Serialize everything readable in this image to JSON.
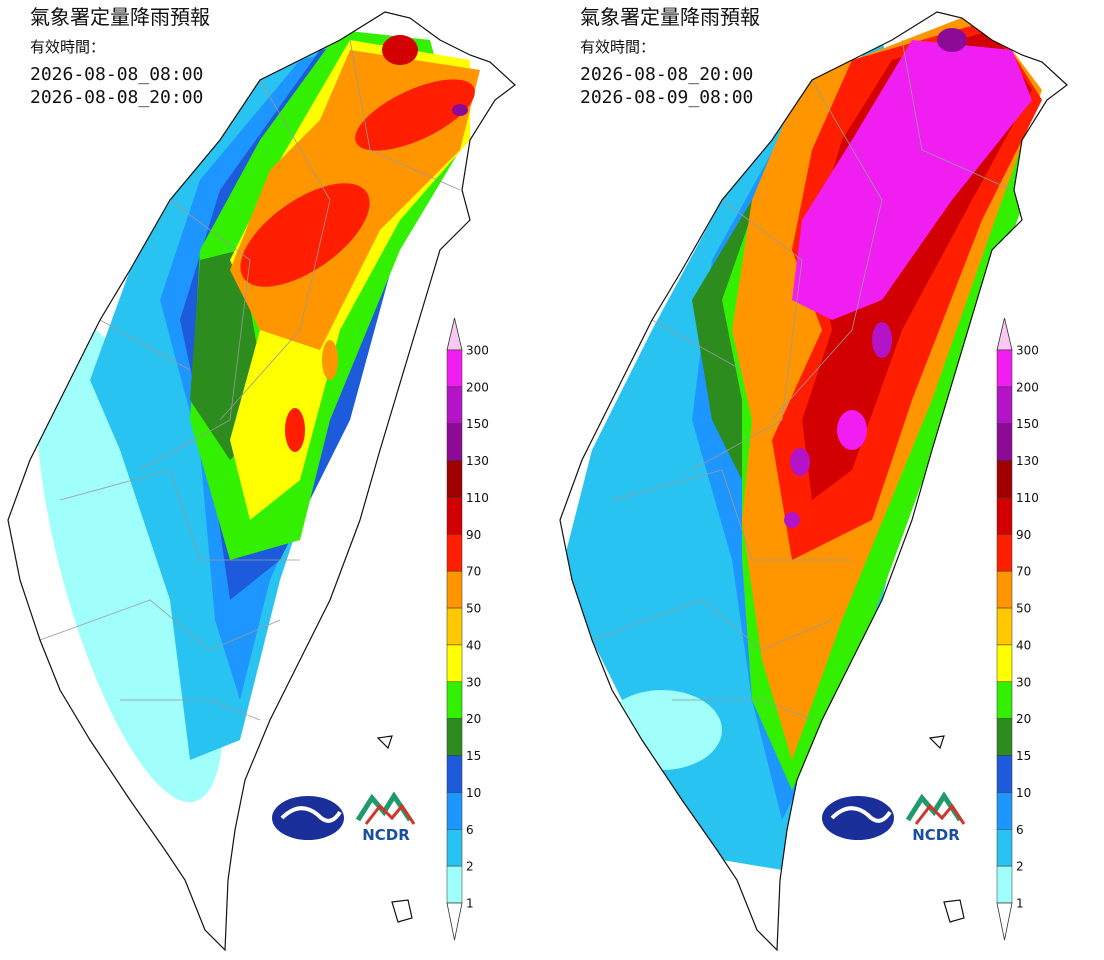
{
  "panels": [
    {
      "title": "氣象署定量降雨預報",
      "valid_label": "有效時間：",
      "start": "2026-08-08_08:00",
      "end": "2026-08-08_20:00"
    },
    {
      "title": "氣象署定量降雨預報",
      "valid_label": "有效時間：",
      "start": "2026-08-08_20:00",
      "end": "2026-08-09_08:00"
    }
  ],
  "colorbar": {
    "labels": [
      300,
      200,
      150,
      130,
      110,
      90,
      70,
      50,
      40,
      30,
      20,
      15,
      10,
      6,
      2,
      1
    ],
    "top_color": "#fbc8f3",
    "colors": [
      "#f01ef0",
      "#b414c8",
      "#8c0a96",
      "#a00000",
      "#d20000",
      "#ff1e00",
      "#ff9600",
      "#ffc800",
      "#ffff00",
      "#32f000",
      "#2d8c1e",
      "#1e5adc",
      "#1e96ff",
      "#28c3f0",
      "#a0fffa"
    ],
    "bottom_color": "#ffffff"
  },
  "logo_text": "NCDR"
}
